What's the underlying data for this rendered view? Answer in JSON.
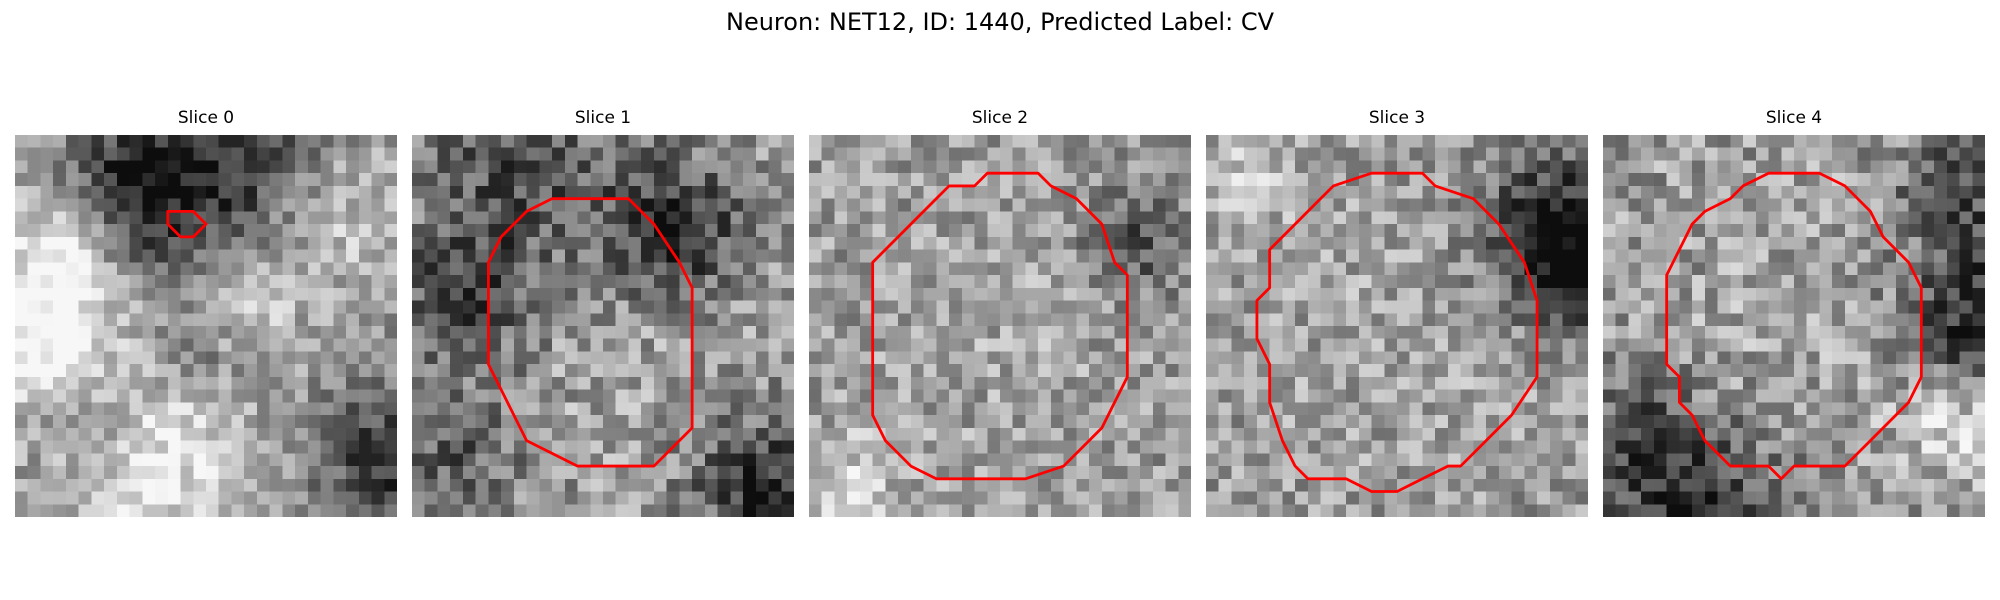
{
  "figure": {
    "title": "Neuron: NET12, ID: 1440, Predicted Label: CV",
    "contour_color": "#ff0000",
    "colormap": "gray"
  },
  "panels": [
    {
      "title": "Slice 0",
      "contour": [
        [
          13,
          6
        ],
        [
          14,
          6
        ],
        [
          15,
          7
        ],
        [
          14,
          8
        ],
        [
          13,
          8
        ],
        [
          12,
          7
        ],
        [
          12,
          6
        ]
      ],
      "blobs": [
        {
          "x": 9,
          "y": 4,
          "r": 4,
          "v": -0.45
        },
        {
          "x": 17,
          "y": 2,
          "r": 5,
          "v": -0.35
        },
        {
          "x": 2,
          "y": 15,
          "r": 4,
          "v": 0.45
        },
        {
          "x": 3,
          "y": 8,
          "r": 3,
          "v": 0.3
        },
        {
          "x": 10,
          "y": 25,
          "r": 5,
          "v": 0.35
        },
        {
          "x": 17,
          "y": 13,
          "r": 3,
          "v": 0.25
        },
        {
          "x": 29,
          "y": 25,
          "r": 4,
          "v": -0.4
        },
        {
          "x": 6,
          "y": 22,
          "r": 3,
          "v": -0.25
        },
        {
          "x": 14,
          "y": 16,
          "r": 3,
          "v": -0.2
        },
        {
          "x": 25,
          "y": 6,
          "r": 4,
          "v": 0.2
        }
      ],
      "noise": 0.18
    },
    {
      "title": "Slice 1",
      "contour": [
        [
          11,
          5
        ],
        [
          17,
          5
        ],
        [
          19,
          7
        ],
        [
          21,
          10
        ],
        [
          22,
          12
        ],
        [
          22,
          23
        ],
        [
          21,
          24
        ],
        [
          20,
          25
        ],
        [
          19,
          26
        ],
        [
          13,
          26
        ],
        [
          11,
          25
        ],
        [
          9,
          24
        ],
        [
          8,
          22
        ],
        [
          7,
          20
        ],
        [
          6,
          18
        ],
        [
          6,
          10
        ],
        [
          7,
          8
        ],
        [
          9,
          6
        ]
      ],
      "blobs": [
        {
          "x": 15,
          "y": 15,
          "r": 9,
          "v": 0.05
        },
        {
          "x": 20,
          "y": 7,
          "r": 4,
          "v": -0.45
        },
        {
          "x": 4,
          "y": 12,
          "r": 4,
          "v": -0.35
        },
        {
          "x": 27,
          "y": 27,
          "r": 4,
          "v": -0.4
        },
        {
          "x": 8,
          "y": 2,
          "r": 5,
          "v": -0.3
        },
        {
          "x": 3,
          "y": 25,
          "r": 4,
          "v": -0.25
        }
      ],
      "noise": 0.22
    },
    {
      "title": "Slice 2",
      "contour": [
        [
          11,
          4
        ],
        [
          13,
          4
        ],
        [
          14,
          3
        ],
        [
          18,
          3
        ],
        [
          19,
          4
        ],
        [
          21,
          5
        ],
        [
          23,
          7
        ],
        [
          24,
          10
        ],
        [
          25,
          11
        ],
        [
          25,
          19
        ],
        [
          24,
          21
        ],
        [
          23,
          23
        ],
        [
          22,
          24
        ],
        [
          20,
          26
        ],
        [
          17,
          27
        ],
        [
          10,
          27
        ],
        [
          8,
          26
        ],
        [
          6,
          24
        ],
        [
          5,
          22
        ],
        [
          5,
          10
        ],
        [
          7,
          8
        ],
        [
          9,
          6
        ],
        [
          10,
          5
        ]
      ],
      "blobs": [
        {
          "x": 15,
          "y": 15,
          "r": 9,
          "v": 0.05
        },
        {
          "x": 25,
          "y": 8,
          "r": 3,
          "v": -0.3
        },
        {
          "x": 2,
          "y": 27,
          "r": 3,
          "v": 0.2
        }
      ],
      "noise": 0.2
    },
    {
      "title": "Slice 3",
      "contour": [
        [
          8,
          6
        ],
        [
          9,
          5
        ],
        [
          10,
          4
        ],
        [
          13,
          3
        ],
        [
          17,
          3
        ],
        [
          18,
          4
        ],
        [
          21,
          5
        ],
        [
          23,
          7
        ],
        [
          25,
          10
        ],
        [
          26,
          13
        ],
        [
          26,
          19
        ],
        [
          24,
          22
        ],
        [
          22,
          24
        ],
        [
          20,
          26
        ],
        [
          19,
          26
        ],
        [
          17,
          27
        ],
        [
          15,
          28
        ],
        [
          13,
          28
        ],
        [
          11,
          27
        ],
        [
          8,
          27
        ],
        [
          7,
          26
        ],
        [
          6,
          24
        ],
        [
          5,
          21
        ],
        [
          5,
          18
        ],
        [
          4,
          16
        ],
        [
          4,
          13
        ],
        [
          5,
          12
        ],
        [
          5,
          9
        ],
        [
          6,
          8
        ],
        [
          7,
          7
        ]
      ],
      "blobs": [
        {
          "x": 15,
          "y": 15,
          "r": 10,
          "v": 0.05
        },
        {
          "x": 27,
          "y": 7,
          "r": 4,
          "v": -0.55
        },
        {
          "x": 29,
          "y": 11,
          "r": 3,
          "v": -0.3
        },
        {
          "x": 2,
          "y": 3,
          "r": 3,
          "v": 0.15
        }
      ],
      "noise": 0.2
    },
    {
      "title": "Slice 4",
      "contour": [
        [
          13,
          3
        ],
        [
          17,
          3
        ],
        [
          19,
          4
        ],
        [
          21,
          6
        ],
        [
          22,
          8
        ],
        [
          24,
          10
        ],
        [
          25,
          12
        ],
        [
          25,
          19
        ],
        [
          24,
          21
        ],
        [
          23,
          22
        ],
        [
          21,
          24
        ],
        [
          19,
          26
        ],
        [
          17,
          26
        ],
        [
          15,
          26
        ],
        [
          14,
          27
        ],
        [
          13,
          26
        ],
        [
          10,
          26
        ],
        [
          9,
          25
        ],
        [
          8,
          24
        ],
        [
          7,
          22
        ],
        [
          6,
          21
        ],
        [
          6,
          19
        ],
        [
          5,
          18
        ],
        [
          5,
          11
        ],
        [
          6,
          9
        ],
        [
          7,
          7
        ],
        [
          8,
          6
        ],
        [
          10,
          5
        ],
        [
          11,
          4
        ]
      ],
      "blobs": [
        {
          "x": 15,
          "y": 15,
          "r": 9,
          "v": 0.05
        },
        {
          "x": 29,
          "y": 14,
          "r": 4,
          "v": -0.5
        },
        {
          "x": 27,
          "y": 4,
          "r": 3,
          "v": -0.35
        },
        {
          "x": 6,
          "y": 29,
          "r": 5,
          "v": -0.45
        },
        {
          "x": 2,
          "y": 22,
          "r": 3,
          "v": -0.2
        },
        {
          "x": 27,
          "y": 22,
          "r": 3,
          "v": 0.25
        }
      ],
      "noise": 0.22
    }
  ]
}
